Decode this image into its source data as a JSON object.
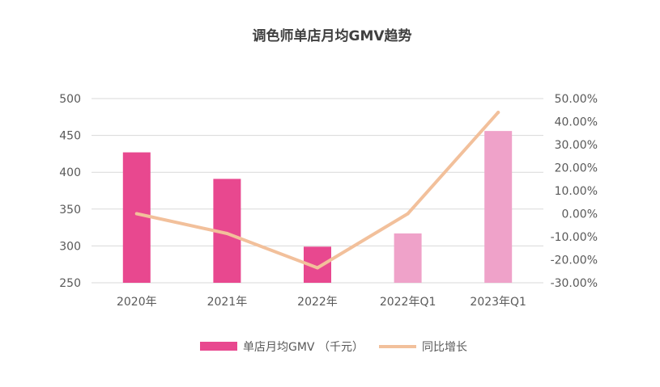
{
  "chart_data": {
    "type": "bar+line",
    "title": "调色师单店月均GMV趋势",
    "categories": [
      "2020年",
      "2021年",
      "2022年",
      "2022年Q1",
      "2023年Q1"
    ],
    "series": [
      {
        "name": "单店月均GMV （千元）",
        "type": "bar",
        "axis": "left",
        "values": [
          427,
          391,
          299,
          317,
          456
        ],
        "colors": [
          "#E8488F",
          "#E8488F",
          "#E8488F",
          "#EFA2C9",
          "#EFA2C9"
        ]
      },
      {
        "name": "同比增长",
        "type": "line",
        "axis": "right",
        "values": [
          0.0,
          -8.6,
          -23.5,
          0.0,
          44.0
        ],
        "color": "#F2C09B"
      }
    ],
    "y_left": {
      "min": 250,
      "max": 500,
      "ticks": [
        250,
        300,
        350,
        400,
        450,
        500
      ]
    },
    "y_right": {
      "min": -30,
      "max": 50,
      "ticks": [
        -30,
        -20,
        -10,
        0,
        10,
        20,
        30,
        40,
        50
      ],
      "tick_labels": [
        "-30.00%",
        "-20.00%",
        "-10.00%",
        "0.00%",
        "10.00%",
        "20.00%",
        "30.00%",
        "40.00%",
        "50.00%"
      ]
    },
    "grid": true,
    "legend_position": "bottom",
    "gridline_color": "#D9D9D9"
  }
}
